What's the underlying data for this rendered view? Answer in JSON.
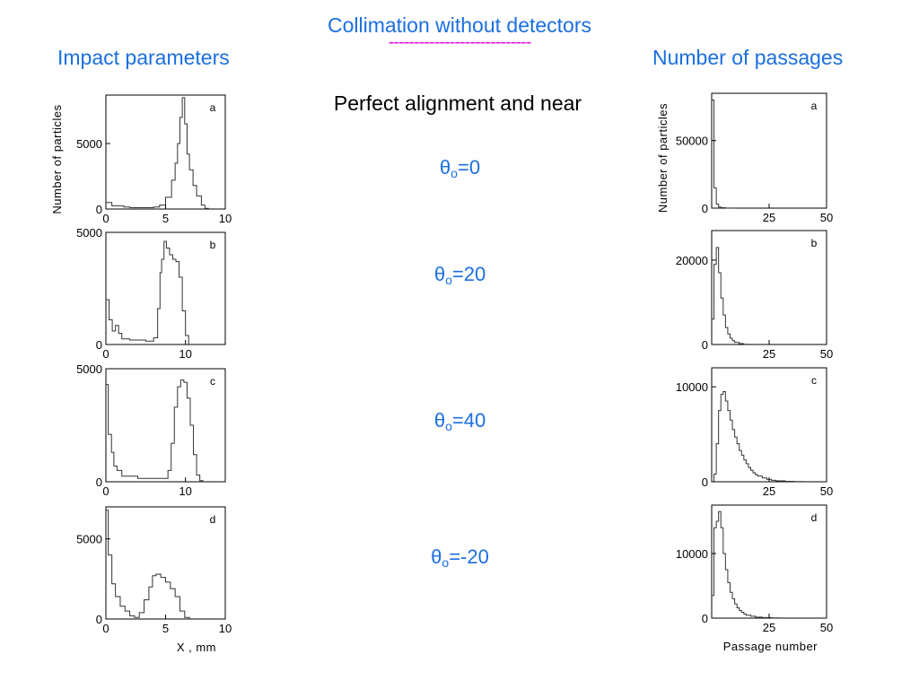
{
  "page": {
    "title": "Collimation without detectors",
    "dashes": "----------------------------",
    "left_heading": "Impact parameters",
    "right_heading": "Number of passages",
    "subtitle": "Perfect alignment and near",
    "conditions": [
      {
        "symbol": "θ",
        "sub": "o",
        "value": "=0"
      },
      {
        "symbol": "θ",
        "sub": "o",
        "value": "=20"
      },
      {
        "symbol": "θ",
        "sub": "o",
        "value": "=40"
      },
      {
        "symbol": "θ",
        "sub": "o",
        "value": "=-20"
      }
    ],
    "colors": {
      "blue": "#1a6fe0",
      "magenta": "#e010e0",
      "axis": "#000000"
    }
  },
  "chart_data": [
    {
      "id": "impact-a",
      "type": "histogram",
      "panel_label": "a",
      "xlim": [
        0,
        10
      ],
      "ylim": [
        0,
        8700
      ],
      "xticks": [
        {
          "v": 0,
          "t": "0"
        },
        {
          "v": 5,
          "t": "5"
        },
        {
          "v": 10,
          "t": "10"
        }
      ],
      "yticks": [
        {
          "v": 0,
          "t": "0"
        },
        {
          "v": 5000,
          "t": "5000"
        }
      ],
      "ylabel": "Number of particles",
      "xlabel": "",
      "points": [
        [
          0,
          500
        ],
        [
          0.5,
          250
        ],
        [
          1,
          250
        ],
        [
          1.5,
          150
        ],
        [
          2,
          100
        ],
        [
          3,
          100
        ],
        [
          4,
          150
        ],
        [
          4.5,
          300
        ],
        [
          5,
          900
        ],
        [
          5.5,
          2200
        ],
        [
          5.8,
          3500
        ],
        [
          6,
          5000
        ],
        [
          6.2,
          7000
        ],
        [
          6.4,
          8500
        ],
        [
          6.6,
          6500
        ],
        [
          6.8,
          4200
        ],
        [
          7,
          3000
        ],
        [
          7.3,
          1800
        ],
        [
          7.6,
          1000
        ],
        [
          8,
          300
        ],
        [
          8.3,
          50
        ],
        [
          8.6,
          0
        ]
      ]
    },
    {
      "id": "impact-b",
      "type": "histogram",
      "panel_label": "b",
      "xlim": [
        0,
        15
      ],
      "ylim": [
        0,
        5000
      ],
      "xticks": [
        {
          "v": 0,
          "t": "0"
        },
        {
          "v": 10,
          "t": "10"
        }
      ],
      "yticks": [
        {
          "v": 0,
          "t": "0"
        },
        {
          "v": 5000,
          "t": "5000"
        }
      ],
      "ylabel": "",
      "xlabel": "",
      "points": [
        [
          0,
          2000
        ],
        [
          0.4,
          1100
        ],
        [
          0.8,
          600
        ],
        [
          1.2,
          850
        ],
        [
          1.6,
          500
        ],
        [
          2,
          250
        ],
        [
          3,
          200
        ],
        [
          5,
          150
        ],
        [
          6,
          300
        ],
        [
          6.5,
          1600
        ],
        [
          6.8,
          3200
        ],
        [
          7,
          3800
        ],
        [
          7.3,
          4600
        ],
        [
          7.6,
          4300
        ],
        [
          8,
          4000
        ],
        [
          8.4,
          3800
        ],
        [
          8.8,
          3700
        ],
        [
          9.2,
          3000
        ],
        [
          9.6,
          1500
        ],
        [
          10,
          400
        ],
        [
          10.4,
          0
        ]
      ]
    },
    {
      "id": "impact-c",
      "type": "histogram",
      "panel_label": "c",
      "xlim": [
        0,
        15
      ],
      "ylim": [
        0,
        5000
      ],
      "xticks": [
        {
          "v": 0,
          "t": "0"
        },
        {
          "v": 10,
          "t": "10"
        }
      ],
      "yticks": [
        {
          "v": 0,
          "t": "0"
        },
        {
          "v": 5000,
          "t": "5000"
        }
      ],
      "ylabel": "",
      "xlabel": "",
      "points": [
        [
          0,
          4300
        ],
        [
          0.3,
          2100
        ],
        [
          0.7,
          1300
        ],
        [
          1,
          700
        ],
        [
          1.4,
          500
        ],
        [
          2,
          250
        ],
        [
          4,
          150
        ],
        [
          7,
          150
        ],
        [
          7.8,
          500
        ],
        [
          8.2,
          1700
        ],
        [
          8.6,
          3300
        ],
        [
          9,
          4200
        ],
        [
          9.4,
          4500
        ],
        [
          9.8,
          4400
        ],
        [
          10.2,
          3700
        ],
        [
          10.6,
          2500
        ],
        [
          11,
          1200
        ],
        [
          11.4,
          300
        ],
        [
          11.8,
          50
        ],
        [
          12.2,
          0
        ]
      ]
    },
    {
      "id": "impact-d",
      "type": "histogram",
      "panel_label": "d",
      "xlim": [
        0,
        10
      ],
      "ylim": [
        0,
        7000
      ],
      "xticks": [
        {
          "v": 0,
          "t": "0"
        },
        {
          "v": 5,
          "t": "5"
        },
        {
          "v": 10,
          "t": "10"
        }
      ],
      "yticks": [
        {
          "v": 0,
          "t": "0"
        },
        {
          "v": 5000,
          "t": "5000"
        }
      ],
      "ylabel": "",
      "xlabel": "X , mm",
      "points": [
        [
          0,
          6800
        ],
        [
          0.2,
          4000
        ],
        [
          0.5,
          2200
        ],
        [
          0.8,
          1400
        ],
        [
          1.2,
          800
        ],
        [
          1.6,
          500
        ],
        [
          2,
          200
        ],
        [
          2.4,
          100
        ],
        [
          2.8,
          400
        ],
        [
          3.2,
          1200
        ],
        [
          3.6,
          2000
        ],
        [
          3.9,
          2700
        ],
        [
          4.2,
          2800
        ],
        [
          4.6,
          2600
        ],
        [
          5,
          2300
        ],
        [
          5.4,
          1900
        ],
        [
          5.8,
          1400
        ],
        [
          6.2,
          500
        ],
        [
          6.6,
          100
        ],
        [
          7,
          0
        ]
      ]
    },
    {
      "id": "passages-a",
      "type": "histogram",
      "panel_label": "a",
      "xlim": [
        0,
        50
      ],
      "ylim": [
        0,
        85000
      ],
      "xticks": [
        {
          "v": 25,
          "t": "25"
        },
        {
          "v": 50,
          "t": "50"
        }
      ],
      "yticks": [
        {
          "v": 0,
          "t": "0"
        },
        {
          "v": 50000,
          "t": "50000"
        }
      ],
      "ylabel": "Number of particles",
      "xlabel": "",
      "points": [
        [
          0,
          80000
        ],
        [
          1,
          15000
        ],
        [
          2,
          3000
        ],
        [
          3,
          800
        ],
        [
          4,
          300
        ],
        [
          6,
          100
        ],
        [
          10,
          0
        ]
      ]
    },
    {
      "id": "passages-b",
      "type": "histogram",
      "panel_label": "b",
      "xlim": [
        0,
        50
      ],
      "ylim": [
        0,
        27000
      ],
      "xticks": [
        {
          "v": 25,
          "t": "25"
        },
        {
          "v": 50,
          "t": "50"
        }
      ],
      "yticks": [
        {
          "v": 0,
          "t": "0"
        },
        {
          "v": 20000,
          "t": "20000"
        }
      ],
      "ylabel": "",
      "xlabel": "",
      "points": [
        [
          0,
          6000
        ],
        [
          1,
          19000
        ],
        [
          2,
          23000
        ],
        [
          3,
          17000
        ],
        [
          4,
          11000
        ],
        [
          5,
          7000
        ],
        [
          6,
          4000
        ],
        [
          7,
          2500
        ],
        [
          8,
          1500
        ],
        [
          9,
          900
        ],
        [
          10,
          500
        ],
        [
          12,
          200
        ],
        [
          14,
          50
        ],
        [
          16,
          0
        ]
      ]
    },
    {
      "id": "passages-c",
      "type": "histogram",
      "panel_label": "c",
      "xlim": [
        0,
        50
      ],
      "ylim": [
        0,
        12000
      ],
      "xticks": [
        {
          "v": 25,
          "t": "25"
        },
        {
          "v": 50,
          "t": "50"
        }
      ],
      "yticks": [
        {
          "v": 0,
          "t": "0"
        },
        {
          "v": 10000,
          "t": "10000"
        }
      ],
      "ylabel": "",
      "xlabel": "",
      "points": [
        [
          0,
          0
        ],
        [
          1,
          800
        ],
        [
          2,
          4000
        ],
        [
          3,
          7500
        ],
        [
          4,
          9200
        ],
        [
          5,
          9500
        ],
        [
          6,
          8500
        ],
        [
          7,
          7500
        ],
        [
          8,
          6500
        ],
        [
          9,
          5500
        ],
        [
          10,
          4700
        ],
        [
          11,
          4000
        ],
        [
          12,
          3300
        ],
        [
          13,
          2800
        ],
        [
          14,
          2300
        ],
        [
          15,
          1900
        ],
        [
          16,
          1500
        ],
        [
          17,
          1200
        ],
        [
          18,
          950
        ],
        [
          19,
          750
        ],
        [
          20,
          600
        ],
        [
          22,
          400
        ],
        [
          24,
          250
        ],
        [
          26,
          150
        ],
        [
          28,
          100
        ],
        [
          32,
          50
        ],
        [
          36,
          20
        ],
        [
          40,
          0
        ]
      ]
    },
    {
      "id": "passages-d",
      "type": "histogram",
      "panel_label": "d",
      "xlim": [
        0,
        50
      ],
      "ylim": [
        0,
        17500
      ],
      "xticks": [
        {
          "v": 25,
          "t": "25"
        },
        {
          "v": 50,
          "t": "50"
        }
      ],
      "yticks": [
        {
          "v": 0,
          "t": "0"
        },
        {
          "v": 10000,
          "t": "10000"
        }
      ],
      "ylabel": "",
      "xlabel": "Passage number",
      "points": [
        [
          0,
          3500
        ],
        [
          1,
          14000
        ],
        [
          2,
          15000
        ],
        [
          3,
          16500
        ],
        [
          4,
          14000
        ],
        [
          5,
          10000
        ],
        [
          6,
          7500
        ],
        [
          7,
          5500
        ],
        [
          8,
          4000
        ],
        [
          9,
          3000
        ],
        [
          10,
          2200
        ],
        [
          11,
          1600
        ],
        [
          12,
          1200
        ],
        [
          13,
          900
        ],
        [
          14,
          650
        ],
        [
          15,
          450
        ],
        [
          17,
          300
        ],
        [
          19,
          150
        ],
        [
          22,
          80
        ],
        [
          26,
          30
        ],
        [
          30,
          0
        ]
      ]
    }
  ]
}
